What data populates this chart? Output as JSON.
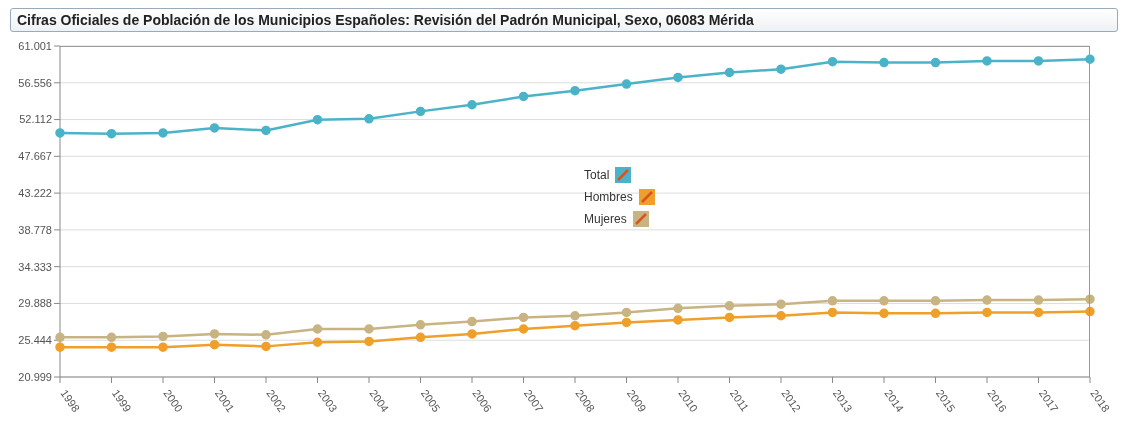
{
  "chart_data": {
    "type": "line",
    "title": "Cifras Oficiales de Población de los Municipios Españoles: Revisión del Padrón Municipal, Sexo, 06083 Mérida",
    "categories": [
      "1998",
      "1999",
      "2000",
      "2001",
      "2002",
      "2003",
      "2004",
      "2005",
      "2006",
      "2007",
      "2008",
      "2009",
      "2010",
      "2011",
      "2012",
      "2013",
      "2014",
      "2015",
      "2016",
      "2017",
      "2018"
    ],
    "series": [
      {
        "name": "Total",
        "color": "#4bb3c8",
        "values": [
          50500,
          50400,
          50500,
          51100,
          50800,
          52100,
          52200,
          53100,
          53900,
          54900,
          55600,
          56400,
          57200,
          57800,
          58200,
          59100,
          59000,
          59000,
          59200,
          59200,
          59400
        ]
      },
      {
        "name": "Hombres",
        "color": "#eea02a",
        "values": [
          24600,
          24600,
          24600,
          24900,
          24700,
          25200,
          25300,
          25800,
          26200,
          26800,
          27200,
          27600,
          27900,
          28200,
          28400,
          28800,
          28700,
          28700,
          28800,
          28800,
          28900
        ]
      },
      {
        "name": "Mujeres",
        "color": "#c8b482",
        "values": [
          25800,
          25800,
          25900,
          26200,
          26100,
          26800,
          26800,
          27300,
          27700,
          28200,
          28400,
          28800,
          29300,
          29600,
          29800,
          30200,
          30200,
          30200,
          30300,
          30300,
          30400
        ]
      }
    ],
    "ylim": [
      20999,
      61001
    ],
    "yticks": [
      {
        "value": 20999,
        "label": "20.999"
      },
      {
        "value": 25444,
        "label": "25.444"
      },
      {
        "value": 29888,
        "label": "29.888"
      },
      {
        "value": 34333,
        "label": "34.333"
      },
      {
        "value": 38778,
        "label": "38.778"
      },
      {
        "value": 43222,
        "label": "43.222"
      },
      {
        "value": 47667,
        "label": "47.667"
      },
      {
        "value": 52112,
        "label": "52.112"
      },
      {
        "value": 56556,
        "label": "56.556"
      },
      {
        "value": 61001,
        "label": "61.001"
      }
    ],
    "grid": "y",
    "legend": "center",
    "marker": "circle",
    "line_style": "solid"
  }
}
